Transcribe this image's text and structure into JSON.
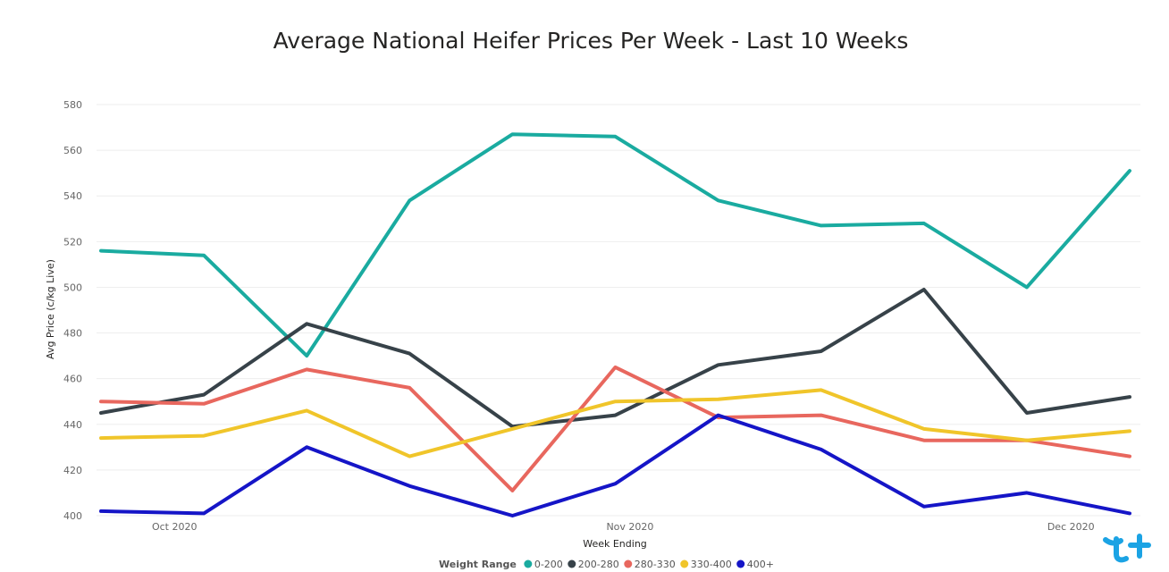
{
  "chart_data": {
    "type": "line",
    "title": "Average National Heifer Prices Per Week - Last 10 Weeks",
    "xlabel": "Week Ending",
    "ylabel": "Avg Price (c/kg Live)",
    "ylim": [
      400,
      580
    ],
    "yticks": [
      580,
      560,
      540,
      520,
      500,
      480,
      460,
      440,
      420,
      400
    ],
    "x": [
      "2020-09-26",
      "2020-10-03",
      "2020-10-10",
      "2020-10-17",
      "2020-10-24",
      "2020-10-31",
      "2020-11-07",
      "2020-11-14",
      "2020-11-21",
      "2020-11-28",
      "2020-12-05"
    ],
    "xtick_labels": [
      {
        "date": "2020-10-01",
        "label": "Oct 2020"
      },
      {
        "date": "2020-11-01",
        "label": "Nov 2020"
      },
      {
        "date": "2020-12-01",
        "label": "Dec 2020"
      }
    ],
    "grid": true,
    "legend": {
      "title": "Weight Range",
      "placement": "bottom"
    },
    "series": [
      {
        "name": "0-200",
        "color": "#1aaba0",
        "values": [
          516,
          514,
          470,
          538,
          567,
          566,
          538,
          527,
          528,
          500,
          551
        ]
      },
      {
        "name": "200-280",
        "color": "#374249",
        "values": [
          445,
          453,
          484,
          471,
          439,
          444,
          466,
          472,
          499,
          445,
          452
        ]
      },
      {
        "name": "280-330",
        "color": "#e8675e",
        "values": [
          450,
          449,
          464,
          456,
          411,
          465,
          443,
          444,
          433,
          433,
          426
        ]
      },
      {
        "name": "330-400",
        "color": "#f0c52a",
        "values": [
          434,
          435,
          446,
          426,
          438,
          450,
          451,
          455,
          438,
          433,
          437
        ]
      },
      {
        "name": "400+",
        "color": "#1515c7",
        "values": [
          402,
          401,
          430,
          413,
          400,
          414,
          444,
          429,
          404,
          410,
          401
        ]
      }
    ]
  },
  "logo": {
    "icon": "twitter-like-brand-icon",
    "color": "#1ba3e4"
  }
}
